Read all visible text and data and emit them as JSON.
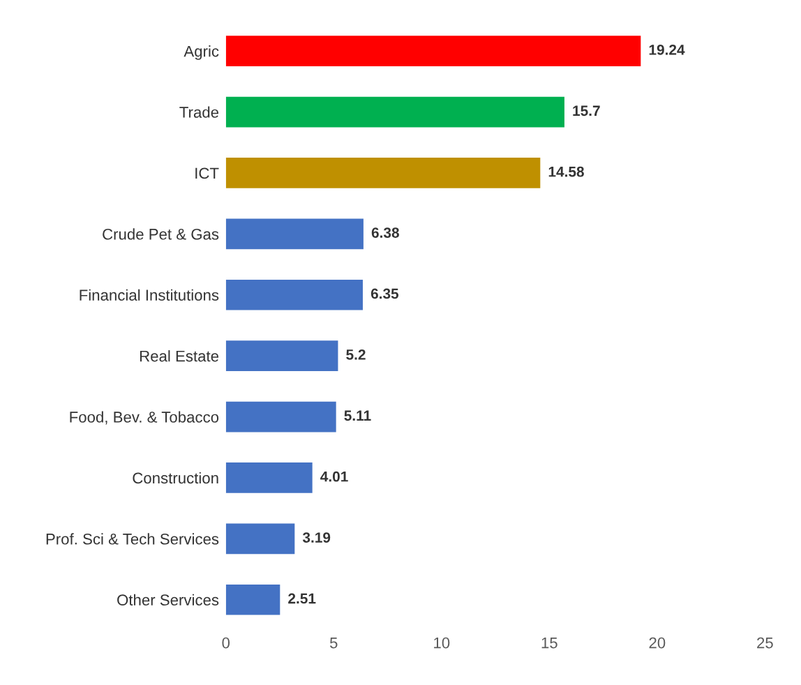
{
  "chart_data": {
    "type": "bar",
    "orientation": "horizontal",
    "categories": [
      "Agric",
      "Trade",
      "ICT",
      "Crude Pet & Gas",
      "Financial Institutions",
      "Real Estate",
      "Food, Bev. & Tobacco",
      "Construction",
      "Prof. Sci & Tech Services",
      "Other Services"
    ],
    "values": [
      19.24,
      15.7,
      14.58,
      6.38,
      6.35,
      5.2,
      5.11,
      4.01,
      3.19,
      2.51
    ],
    "colors": [
      "#ff0000",
      "#00b050",
      "#bf9000",
      "#4472c4",
      "#4472c4",
      "#4472c4",
      "#4472c4",
      "#4472c4",
      "#4472c4",
      "#4472c4"
    ],
    "xlim": [
      0,
      25
    ],
    "xticks": [
      0,
      5,
      10,
      15,
      20,
      25
    ],
    "data_labels": true,
    "grid": false,
    "legend": false
  }
}
